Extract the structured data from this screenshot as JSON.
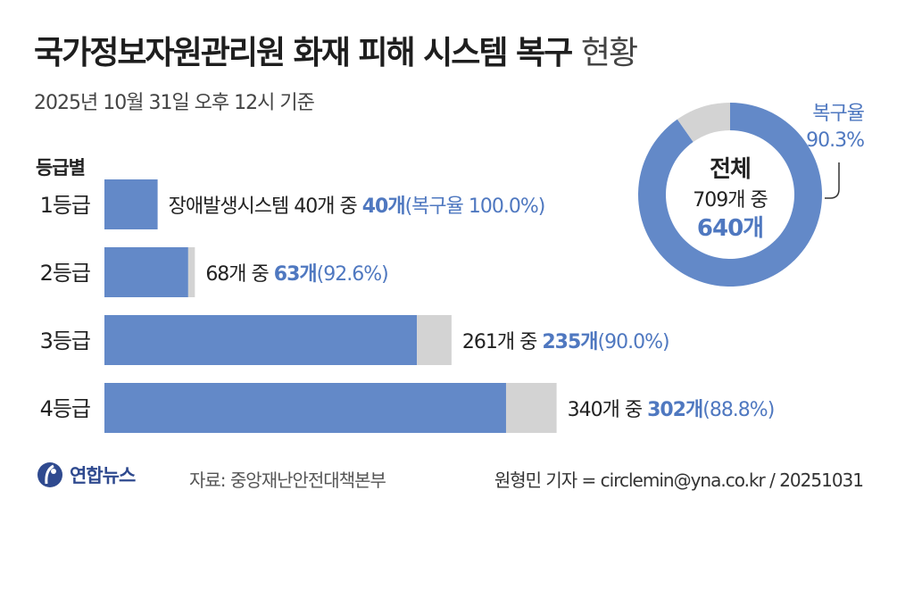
{
  "header": {
    "title_main": "국가정보자원관리원 화재 피해 시스템 복구",
    "title_light": "현황",
    "subtitle": "2025년 10월 31일 오후 12시 기준"
  },
  "colors": {
    "recovered": "#6389c8",
    "remaining": "#d3d3d3",
    "accent_text": "#4f78c0",
    "dark_text": "#222222"
  },
  "chart_data": [
    {
      "type": "bar",
      "orientation": "horizontal",
      "stacked": true,
      "legend_header": "등급별",
      "categories": [
        "1등급",
        "2등급",
        "3등급",
        "4등급"
      ],
      "series": [
        {
          "values": [
            40,
            63,
            235,
            302
          ]
        },
        {
          "values": [
            0,
            5,
            26,
            38
          ]
        }
      ],
      "totals": [
        40,
        68,
        261,
        340
      ],
      "labels": [
        {
          "prefix": "장애발생시스템 40개 중 ",
          "recovered": "40개",
          "rate": "(복구율 100.0%)"
        },
        {
          "prefix": "68개 중 ",
          "recovered": "63개",
          "rate": "(92.6%)"
        },
        {
          "prefix": "261개 중 ",
          "recovered": "235개",
          "rate": "(90.0%)"
        },
        {
          "prefix": "340개 중 ",
          "recovered": "302개",
          "rate": "(88.8%)"
        }
      ]
    },
    {
      "type": "pie",
      "donut": true,
      "values": [
        640,
        69
      ],
      "center_title": "전체",
      "center_line": "709개 중",
      "center_value": "640개",
      "callout_label": "복구율",
      "callout_value": "90.3%"
    }
  ],
  "footer": {
    "logo_text": "연합뉴스",
    "source": "자료: 중앙재난안전대책본부",
    "credit": "원형민 기자 = circlemin@yna.co.kr / 20251031"
  }
}
